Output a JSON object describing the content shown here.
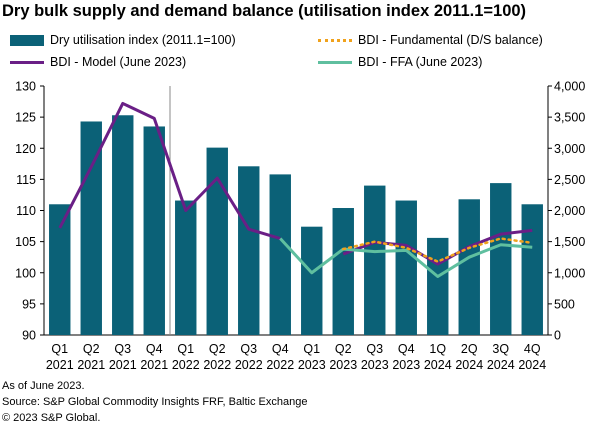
{
  "title": "Dry bulk supply and demand balance (utilisation index 2011.1=100)",
  "legend": {
    "utilisation": "Dry utilisation index (2011.1=100)",
    "fundamental": "BDI - Fundamental (D/S balance)",
    "model": "BDI - Model (June 2023)",
    "ffa": "BDI - FFA (June 2023)"
  },
  "footnotes": {
    "line1": "As of June 2023.",
    "line2": "Source: S&P Global Commodity Insights FRF, Baltic Exchange",
    "line3": "© 2023 S&P Global."
  },
  "chart_data": {
    "type": "bar",
    "title": "Dry bulk supply and demand balance (utilisation index 2011.1=100)",
    "categories": [
      [
        "Q1",
        "2021"
      ],
      [
        "Q2",
        "2021"
      ],
      [
        "Q3",
        "2021"
      ],
      [
        "Q4",
        "2021"
      ],
      [
        "Q1",
        "2022"
      ],
      [
        "Q2",
        "2022"
      ],
      [
        "Q3",
        "2022"
      ],
      [
        "Q4",
        "2022"
      ],
      [
        "Q1",
        "2023"
      ],
      [
        "Q2",
        "2023"
      ],
      [
        "Q3",
        "2023"
      ],
      [
        "Q4",
        "2023"
      ],
      [
        "1Q",
        "2024"
      ],
      [
        "2Q",
        "2024"
      ],
      [
        "3Q",
        "2024"
      ],
      [
        "4Q",
        "2024"
      ]
    ],
    "y_left": {
      "min": 90,
      "max": 130,
      "ticks": [
        "90",
        "95",
        "100",
        "105",
        "110",
        "115",
        "120",
        "125",
        "130"
      ]
    },
    "y_right": {
      "min": 0,
      "max": 4000,
      "ticks": [
        "0",
        "500",
        "1,000",
        "1,500",
        "2,000",
        "2,500",
        "3,000",
        "3,500",
        "4,000"
      ]
    },
    "series": [
      {
        "name": "Dry utilisation index (2011.1=100)",
        "type": "bar",
        "axis": "left",
        "color": "#0b6177",
        "values": [
          111,
          124.3,
          125.3,
          123.5,
          111.6,
          120.1,
          117.1,
          115.8,
          107.4,
          110.4,
          114,
          111.6,
          105.6,
          111.8,
          114.4,
          111
        ]
      },
      {
        "name": "BDI - Model (June 2023)",
        "type": "line",
        "axis": "right",
        "color": "#6a1f86",
        "values": [
          1720,
          2700,
          3720,
          3480,
          2000,
          2520,
          1700,
          1550,
          null,
          1300,
          1490,
          1440,
          1140,
          1420,
          1620,
          1680
        ]
      },
      {
        "name": "BDI - FFA (June 2023)",
        "type": "line",
        "axis": "right",
        "color": "#5fbf9f",
        "values": [
          null,
          null,
          null,
          null,
          null,
          null,
          null,
          1550,
          1000,
          1380,
          1340,
          1360,
          940,
          1250,
          1450,
          1410
        ]
      },
      {
        "name": "BDI - Fundamental (D/S balance)",
        "type": "line",
        "style": "dotted",
        "axis": "right",
        "color": "#f0a21c",
        "values": [
          null,
          null,
          null,
          null,
          null,
          null,
          null,
          null,
          null,
          1380,
          1500,
          1400,
          1180,
          1400,
          1550,
          1480
        ]
      }
    ],
    "grid": false,
    "legend_position": "top"
  }
}
